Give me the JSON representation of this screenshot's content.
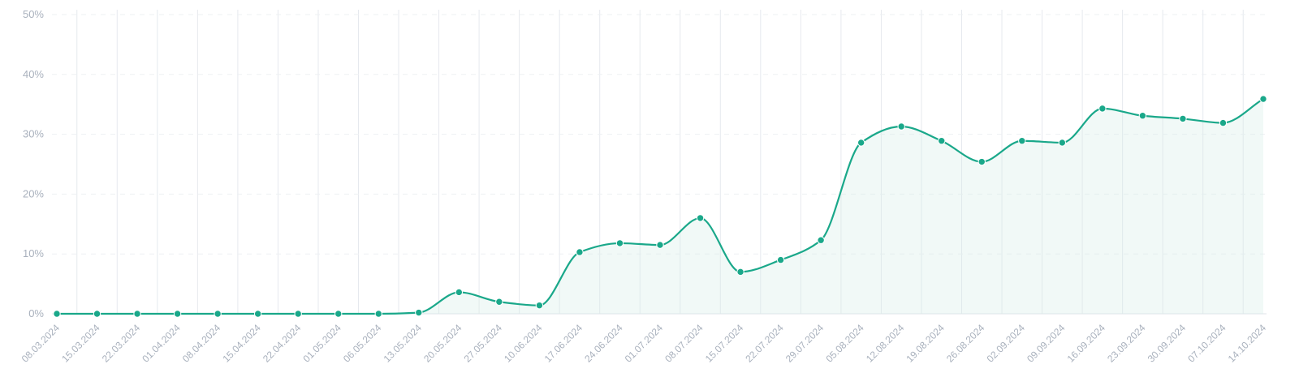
{
  "chart_data": {
    "type": "area",
    "title": "",
    "xlabel": "",
    "ylabel": "",
    "ylim": [
      0,
      50
    ],
    "yticks": [
      "0%",
      "10%",
      "20%",
      "30%",
      "40%",
      "50%"
    ],
    "grid": {
      "vertical": true,
      "horizontal_dashed": true
    },
    "legend": "none",
    "colors": {
      "line": "#1aa88a",
      "area": "#d6efe9"
    },
    "x": [
      "08.03.2024",
      "15.03.2024",
      "22.03.2024",
      "01.04.2024",
      "08.04.2024",
      "15.04.2024",
      "22.04.2024",
      "01.05.2024",
      "06.05.2024",
      "13.05.2024",
      "20.05.2024",
      "27.05.2024",
      "10.06.2024",
      "17.06.2024",
      "24.06.2024",
      "01.07.2024",
      "08.07.2024",
      "15.07.2024",
      "22.07.2024",
      "29.07.2024",
      "05.08.2024",
      "12.08.2024",
      "19.08.2024",
      "26.08.2024",
      "02.09.2024",
      "09.09.2024",
      "16.09.2024",
      "23.09.2024",
      "30.09.2024",
      "07.10.2024",
      "14.10.2024"
    ],
    "series": [
      {
        "values": [
          0,
          0,
          0,
          0,
          0,
          0,
          0,
          0,
          0,
          0.2,
          3.6,
          2.0,
          1.4,
          10.3,
          11.8,
          11.5,
          16.0,
          7.0,
          9.0,
          12.3,
          28.6,
          31.3,
          28.9,
          25.4,
          28.9,
          28.6,
          34.3,
          33.1,
          32.6,
          31.9,
          35.9
        ]
      }
    ]
  }
}
